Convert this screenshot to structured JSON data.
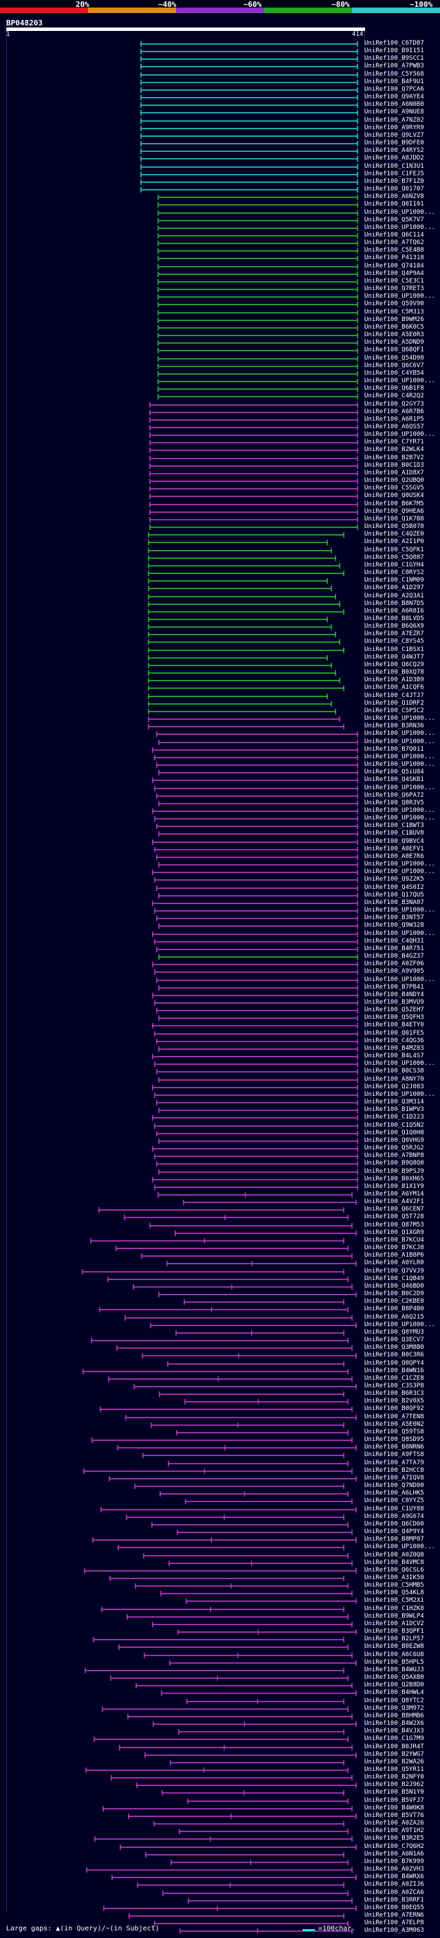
{
  "header": {
    "scale_labels": [
      "20%",
      "~40%",
      "~60%",
      "~80%",
      "~100%"
    ],
    "scale_colors": [
      "#e8151d",
      "#e08a1b",
      "#8f2dd0",
      "#1fa81f",
      "#33c7d4"
    ],
    "query_id": "BP048203",
    "start_pos": "1",
    "end_pos": "414"
  },
  "hits": [
    {
      "id": "UniRef100_C6TD87",
      "color": "#27e3d6"
    },
    {
      "id": "UniRef100_B9I151",
      "color": "#27e3d6"
    },
    {
      "id": "UniRef100_B9SCC1",
      "color": "#27e3d6"
    },
    {
      "id": "UniRef100_A7PWB3",
      "color": "#27e3d6"
    },
    {
      "id": "UniRef100_C5Y568",
      "color": "#27e3d6"
    },
    {
      "id": "UniRef100_B4F9U1",
      "color": "#27e3d6"
    },
    {
      "id": "UniRef100_Q7PCA6",
      "color": "#27e3d6"
    },
    {
      "id": "UniRef100_Q9AYE4",
      "color": "#27e3d6"
    },
    {
      "id": "UniRef100_A6N0B0",
      "color": "#27e3d6"
    },
    {
      "id": "UniRef100_A9NUE8",
      "color": "#27e3d6"
    },
    {
      "id": "UniRef100_A7NZ02",
      "color": "#27e3d6"
    },
    {
      "id": "UniRef100_A9RYR9",
      "color": "#27e3d6"
    },
    {
      "id": "UniRef100_Q9LVZ7",
      "color": "#27e3d6"
    },
    {
      "id": "UniRef100_B9DFE0",
      "color": "#27e3d6"
    },
    {
      "id": "UniRef100_A4RYS2",
      "color": "#27e3d6"
    },
    {
      "id": "UniRef100_A8JDD2",
      "color": "#27e3d6"
    },
    {
      "id": "UniRef100_C1N3U1",
      "color": "#27e3d6"
    },
    {
      "id": "UniRef100_C1FEJ5",
      "color": "#27e3d6"
    },
    {
      "id": "UniRef100_B7F1Z0",
      "color": "#27e3d6"
    },
    {
      "id": "UniRef100_Q01707",
      "color": "#27e3d6"
    },
    {
      "id": "UniRef100_A6NZV8",
      "color": "#2fcf2f"
    },
    {
      "id": "UniRef100_Q0I101",
      "color": "#2fcf2f"
    },
    {
      "id": "UniRef100_UP1000...",
      "color": "#2fcf2f"
    },
    {
      "id": "UniRef100_Q5K7V7",
      "color": "#2fcf2f"
    },
    {
      "id": "UniRef100_UP1000...",
      "color": "#2fcf2f"
    },
    {
      "id": "UniRef100_Q6C114",
      "color": "#2fcf2f"
    },
    {
      "id": "UniRef100_A7TQ62",
      "color": "#2fcf2f"
    },
    {
      "id": "UniRef100_C5E4B8",
      "color": "#2fcf2f"
    },
    {
      "id": "UniRef100_P41318",
      "color": "#2fcf2f"
    },
    {
      "id": "UniRef100_Q74184",
      "color": "#2fcf2f"
    },
    {
      "id": "UniRef100_Q4P9A4",
      "color": "#2fcf2f"
    },
    {
      "id": "UniRef100_C5E3C1",
      "color": "#2fcf2f"
    },
    {
      "id": "UniRef100_Q7RET3",
      "color": "#2fcf2f"
    },
    {
      "id": "UniRef100_UP1000...",
      "color": "#2fcf2f"
    },
    {
      "id": "UniRef100_Q59V90",
      "color": "#2fcf2f"
    },
    {
      "id": "UniRef100_C5M313",
      "color": "#2fcf2f"
    },
    {
      "id": "UniRef100_B9WM26",
      "color": "#2fcf2f"
    },
    {
      "id": "UniRef100_B6K0C5",
      "color": "#2fcf2f"
    },
    {
      "id": "UniRef100_A5E0R3",
      "color": "#2fcf2f"
    },
    {
      "id": "UniRef100_A5DND9",
      "color": "#2fcf2f"
    },
    {
      "id": "UniRef100_Q6BQF1",
      "color": "#2fcf2f"
    },
    {
      "id": "UniRef100_Q54D98",
      "color": "#2fcf2f"
    },
    {
      "id": "UniRef100_Q6C6V7",
      "color": "#2fcf2f"
    },
    {
      "id": "UniRef100_C4YB54",
      "color": "#2fcf2f"
    },
    {
      "id": "UniRef100_UP1000...",
      "color": "#2fcf2f"
    },
    {
      "id": "UniRef100_Q6B1F8",
      "color": "#2fcf2f"
    },
    {
      "id": "UniRef100_C4R2Q2",
      "color": "#2fcf2f"
    },
    {
      "id": "UniRef100_Q2GY73",
      "color": "#d23fd2"
    },
    {
      "id": "UniRef100_A6R7B6",
      "color": "#d23fd2"
    },
    {
      "id": "UniRef100_A6R1P5",
      "color": "#d23fd2"
    },
    {
      "id": "UniRef100_A6QS57",
      "color": "#d23fd2"
    },
    {
      "id": "UniRef100_UP1000...",
      "color": "#d23fd2"
    },
    {
      "id": "UniRef100_C7YR71",
      "color": "#d23fd2"
    },
    {
      "id": "UniRef100_B2WLK4",
      "color": "#d23fd2"
    },
    {
      "id": "UniRef100_B2B7V2",
      "color": "#d23fd2"
    },
    {
      "id": "UniRef100_B0C1D3",
      "color": "#d23fd2"
    },
    {
      "id": "UniRef100_A1D8X7",
      "color": "#d23fd2"
    },
    {
      "id": "UniRef100_Q2UBQ0",
      "color": "#d23fd2"
    },
    {
      "id": "UniRef100_C5SGV5",
      "color": "#d23fd2"
    },
    {
      "id": "UniRef100_Q0USK4",
      "color": "#d23fd2"
    },
    {
      "id": "UniRef100_B6K7M5",
      "color": "#d23fd2"
    },
    {
      "id": "UniRef100_Q9HEA6",
      "color": "#d23fd2"
    },
    {
      "id": "UniRef100_Q1K7B8",
      "color": "#d23fd2"
    },
    {
      "id": "UniRef100_Q5B078",
      "color": "#2fcf2f"
    },
    {
      "id": "UniRef100_C4QZE0",
      "color": "#2fcf2f"
    },
    {
      "id": "UniRef100_A2I1P0",
      "color": "#2fcf2f"
    },
    {
      "id": "UniRef100_C5QFK1",
      "color": "#2fcf2f"
    },
    {
      "id": "UniRef100_C5Q087",
      "color": "#2fcf2f"
    },
    {
      "id": "UniRef100_C1GYH4",
      "color": "#2fcf2f"
    },
    {
      "id": "UniRef100_C0RYS2",
      "color": "#2fcf2f"
    },
    {
      "id": "UniRef100_C1NM09",
      "color": "#2fcf2f"
    },
    {
      "id": "UniRef100_A1D297",
      "color": "#2fcf2f"
    },
    {
      "id": "UniRef100_A2Q3A1",
      "color": "#2fcf2f"
    },
    {
      "id": "UniRef100_B8N7D5",
      "color": "#2fcf2f"
    },
    {
      "id": "UniRef100_A6R8I6",
      "color": "#2fcf2f"
    },
    {
      "id": "UniRef100_B8LVD5",
      "color": "#2fcf2f"
    },
    {
      "id": "UniRef100_B6Q6X9",
      "color": "#2fcf2f"
    },
    {
      "id": "UniRef100_A7EZR7",
      "color": "#2fcf2f"
    },
    {
      "id": "UniRef100_C8YS45",
      "color": "#2fcf2f"
    },
    {
      "id": "UniRef100_C1BSX1",
      "color": "#2fcf2f"
    },
    {
      "id": "UniRef100_Q4WJT7",
      "color": "#2fcf2f"
    },
    {
      "id": "UniRef100_Q6CQ29",
      "color": "#2fcf2f"
    },
    {
      "id": "UniRef100_B0XQ78",
      "color": "#2fcf2f"
    },
    {
      "id": "UniRef100_A1D3B9",
      "color": "#2fcf2f"
    },
    {
      "id": "UniRef100_A1CQF6",
      "color": "#2fcf2f"
    },
    {
      "id": "UniRef100_C4JTJ7",
      "color": "#2fcf2f"
    },
    {
      "id": "UniRef100_Q1DRF2",
      "color": "#2fcf2f"
    },
    {
      "id": "UniRef100_C5P5C2",
      "color": "#2fcf2f"
    },
    {
      "id": "UniRef100_UP1000...",
      "color": "#d23fd2"
    },
    {
      "id": "UniRef100_B3RN36",
      "color": "#d23fd2"
    },
    {
      "id": "UniRef100_UP1000...",
      "color": "#d23fd2"
    },
    {
      "id": "UniRef100_UP1000...",
      "color": "#d23fd2"
    },
    {
      "id": "UniRef100_B7Q011",
      "color": "#d23fd2"
    },
    {
      "id": "UniRef100_UP1000...",
      "color": "#d23fd2"
    },
    {
      "id": "UniRef100_UP1000...",
      "color": "#d23fd2"
    },
    {
      "id": "UniRef100_Q5iU84",
      "color": "#d23fd2"
    },
    {
      "id": "UniRef100_Q4SKB1",
      "color": "#d23fd2"
    },
    {
      "id": "UniRef100_UP1000...",
      "color": "#d23fd2"
    },
    {
      "id": "UniRef100_Q6PA72",
      "color": "#d23fd2"
    },
    {
      "id": "UniRef100_Q8R3V5",
      "color": "#d23fd2"
    },
    {
      "id": "UniRef100_UP1000...",
      "color": "#d23fd2"
    },
    {
      "id": "UniRef100_UP1000...",
      "color": "#d23fd2"
    },
    {
      "id": "UniRef100_C1BWT3",
      "color": "#d23fd2"
    },
    {
      "id": "UniRef100_C1BUV8",
      "color": "#d23fd2"
    },
    {
      "id": "UniRef100_Q9BVC4",
      "color": "#d23fd2"
    },
    {
      "id": "UniRef100_A0EFV1",
      "color": "#d23fd2"
    },
    {
      "id": "UniRef100_A0E7R6",
      "color": "#d23fd2"
    },
    {
      "id": "UniRef100_UP1000...",
      "color": "#d23fd2"
    },
    {
      "id": "UniRef100_UP1000...",
      "color": "#d23fd2"
    },
    {
      "id": "UniRef100_Q9Z2K5",
      "color": "#d23fd2"
    },
    {
      "id": "UniRef100_Q4S0I2",
      "color": "#d23fd2"
    },
    {
      "id": "UniRef100_Q17QU5",
      "color": "#d23fd2"
    },
    {
      "id": "UniRef100_B3NA07",
      "color": "#d23fd2"
    },
    {
      "id": "UniRef100_UP1000...",
      "color": "#d23fd2"
    },
    {
      "id": "UniRef100_B3NT57",
      "color": "#d23fd2"
    },
    {
      "id": "UniRef100_Q9W328",
      "color": "#d23fd2"
    },
    {
      "id": "UniRef100_UP1000...",
      "color": "#d23fd2"
    },
    {
      "id": "UniRef100_C4QH31",
      "color": "#d23fd2"
    },
    {
      "id": "UniRef100_B4R751",
      "color": "#d23fd2"
    },
    {
      "id": "UniRef100_B4GZ37",
      "color": "#2fcf2f"
    },
    {
      "id": "UniRef100_A0ZF06",
      "color": "#d23fd2"
    },
    {
      "id": "UniRef100_A9V905",
      "color": "#d23fd2"
    },
    {
      "id": "UniRef100_UP1000...",
      "color": "#d23fd2"
    },
    {
      "id": "UniRef100_B7PB41",
      "color": "#d23fd2"
    },
    {
      "id": "UniRef100_B4NDY4",
      "color": "#d23fd2"
    },
    {
      "id": "UniRef100_B3MVU9",
      "color": "#d23fd2"
    },
    {
      "id": "UniRef100_Q5ZEH7",
      "color": "#d23fd2"
    },
    {
      "id": "UniRef100_Q5QFH3",
      "color": "#d23fd2"
    },
    {
      "id": "UniRef100_B4ETY0",
      "color": "#d23fd2"
    },
    {
      "id": "UniRef100_Q01FE5",
      "color": "#d23fd2"
    },
    {
      "id": "UniRef100_C4QG36",
      "color": "#d23fd2"
    },
    {
      "id": "UniRef100_B4MZ03",
      "color": "#d23fd2"
    },
    {
      "id": "UniRef100_B4L4S7",
      "color": "#d23fd2"
    },
    {
      "id": "UniRef100_UP1000...",
      "color": "#d23fd2"
    },
    {
      "id": "UniRef100_B0CS38",
      "color": "#d23fd2"
    },
    {
      "id": "UniRef100_A8NY70",
      "color": "#d23fd2"
    },
    {
      "id": "UniRef100_Q2J083",
      "color": "#d23fd2"
    },
    {
      "id": "UniRef100_UP1000...",
      "color": "#d23fd2"
    },
    {
      "id": "UniRef100_Q3M314",
      "color": "#d23fd2"
    },
    {
      "id": "UniRef100_B1WPV3",
      "color": "#d23fd2"
    },
    {
      "id": "UniRef100_C1D223",
      "color": "#d23fd2"
    },
    {
      "id": "UniRef100_C1Q5N2",
      "color": "#d23fd2"
    },
    {
      "id": "UniRef100_Q1Q0H8",
      "color": "#d23fd2"
    },
    {
      "id": "UniRef100_Q0VHG9",
      "color": "#d23fd2"
    },
    {
      "id": "UniRef100_Q5RJG2",
      "color": "#d23fd2"
    },
    {
      "id": "UniRef100_A7BNP8",
      "color": "#d23fd2"
    },
    {
      "id": "UniRef100_B9Q8Q0",
      "color": "#d23fd2"
    },
    {
      "id": "UniRef100_B9PSJ9",
      "color": "#d23fd2"
    },
    {
      "id": "UniRef100_B0XH65",
      "color": "#d23fd2"
    },
    {
      "id": "UniRef100_B1X1Y9",
      "color": "#d23fd2"
    },
    {
      "id": "UniRef100_A6YM14",
      "color": "#d23fd2"
    },
    {
      "id": "UniRef100_A4V2F1",
      "color": "#d23fd2"
    },
    {
      "id": "UniRef100_Q6CEN7",
      "color": "#d23fd2"
    },
    {
      "id": "UniRef100_Q5T728",
      "color": "#d23fd2"
    },
    {
      "id": "UniRef100_Q87M53",
      "color": "#d23fd2"
    },
    {
      "id": "UniRef100_Q1XGR9",
      "color": "#d23fd2"
    },
    {
      "id": "UniRef100_B7KCU4",
      "color": "#d23fd2"
    },
    {
      "id": "UniRef100_B7KCJ8",
      "color": "#d23fd2"
    },
    {
      "id": "UniRef100_A1B8P6",
      "color": "#d23fd2"
    },
    {
      "id": "UniRef100_A0YLR0",
      "color": "#d23fd2"
    },
    {
      "id": "UniRef100_Q7VVJ9",
      "color": "#d23fd2"
    },
    {
      "id": "UniRef100_C1QB49",
      "color": "#d23fd2"
    },
    {
      "id": "UniRef100_Q46BD0",
      "color": "#d23fd2"
    },
    {
      "id": "UniRef100_B0C2D9",
      "color": "#d23fd2"
    },
    {
      "id": "UniRef100_C2KBE0",
      "color": "#d23fd2"
    },
    {
      "id": "UniRef100_B8P4B0",
      "color": "#d23fd2"
    },
    {
      "id": "UniRef100_A6Q215",
      "color": "#d23fd2"
    },
    {
      "id": "UniRef100_UP1000...",
      "color": "#d23fd2"
    },
    {
      "id": "UniRef100_Q8YMU3",
      "color": "#d23fd2"
    },
    {
      "id": "UniRef100_Q3ECV7",
      "color": "#d23fd2"
    },
    {
      "id": "UniRef100_Q3M8B0",
      "color": "#d23fd2"
    },
    {
      "id": "UniRef100_B0C3R6",
      "color": "#d23fd2"
    },
    {
      "id": "UniRef100_Q0QPY4",
      "color": "#d23fd2"
    },
    {
      "id": "UniRef100_B4WN16",
      "color": "#d23fd2"
    },
    {
      "id": "UniRef100_C1CZE8",
      "color": "#d23fd2"
    },
    {
      "id": "UniRef100_C3S3P8",
      "color": "#d23fd2"
    },
    {
      "id": "UniRef100_B6R3C3",
      "color": "#d23fd2"
    },
    {
      "id": "UniRef100_B2V0X5",
      "color": "#d23fd2"
    },
    {
      "id": "UniRef100_B0QF92",
      "color": "#d23fd2"
    },
    {
      "id": "UniRef100_A7TEN8",
      "color": "#d23fd2"
    },
    {
      "id": "UniRef100_A5E0N2",
      "color": "#d23fd2"
    },
    {
      "id": "UniRef100_Q59TS8",
      "color": "#d23fd2"
    },
    {
      "id": "UniRef100_Q8SD95",
      "color": "#d23fd2"
    },
    {
      "id": "UniRef100_B8NRN6",
      "color": "#d23fd2"
    },
    {
      "id": "UniRef100_A9FTS8",
      "color": "#d23fd2"
    },
    {
      "id": "UniRef100_A7TA79",
      "color": "#d23fd2"
    },
    {
      "id": "UniRef100_B2HCC8",
      "color": "#d23fd2"
    },
    {
      "id": "UniRef100_A7IQV8",
      "color": "#d23fd2"
    },
    {
      "id": "UniRef100_Q7ND00",
      "color": "#d23fd2"
    },
    {
      "id": "UniRef100_A6LHK5",
      "color": "#d23fd2"
    },
    {
      "id": "UniRef100_C8YYZ5",
      "color": "#d23fd2"
    },
    {
      "id": "UniRef100_C1UY88",
      "color": "#d23fd2"
    },
    {
      "id": "UniRef100_A9G674",
      "color": "#d23fd2"
    },
    {
      "id": "UniRef100_Q6CD60",
      "color": "#d23fd2"
    },
    {
      "id": "UniRef100_Q4P9Y4",
      "color": "#d23fd2"
    },
    {
      "id": "UniRef100_B8MP07",
      "color": "#d23fd2"
    },
    {
      "id": "UniRef100_UP1000...",
      "color": "#d23fd2"
    },
    {
      "id": "UniRef100_A0Z0Q8",
      "color": "#d23fd2"
    },
    {
      "id": "UniRef100_B4VMC8",
      "color": "#d23fd2"
    },
    {
      "id": "UniRef100_Q6CSL6",
      "color": "#d23fd2"
    },
    {
      "id": "UniRef100_A3IK50",
      "color": "#d23fd2"
    },
    {
      "id": "UniRef100_C5HMB5",
      "color": "#d23fd2"
    },
    {
      "id": "UniRef100_Q54KL8",
      "color": "#d23fd2"
    },
    {
      "id": "UniRef100_C5M2X1",
      "color": "#d23fd2"
    },
    {
      "id": "UniRef100_C1HZK8",
      "color": "#d23fd2"
    },
    {
      "id": "UniRef100_B9WLP4",
      "color": "#d23fd2"
    },
    {
      "id": "UniRef100_A1DCV2",
      "color": "#d23fd2"
    },
    {
      "id": "UniRef100_B3QPF1",
      "color": "#d23fd2"
    },
    {
      "id": "UniRef100_B2LP57",
      "color": "#d23fd2"
    },
    {
      "id": "UniRef100_B0EZW8",
      "color": "#d23fd2"
    },
    {
      "id": "UniRef100_A6C6U8",
      "color": "#d23fd2"
    },
    {
      "id": "UniRef100_B5HPL5",
      "color": "#d23fd2"
    },
    {
      "id": "UniRef100_B4WUJ3",
      "color": "#d23fd2"
    },
    {
      "id": "UniRef100_Q5AXB0",
      "color": "#d23fd2"
    },
    {
      "id": "UniRef100_Q2B8D0",
      "color": "#d23fd2"
    },
    {
      "id": "UniRef100_B4HWL4",
      "color": "#d23fd2"
    },
    {
      "id": "UniRef100_Q8YTC2",
      "color": "#d23fd2"
    },
    {
      "id": "UniRef100_Q3M972",
      "color": "#d23fd2"
    },
    {
      "id": "UniRef100_B8HMB6",
      "color": "#d23fd2"
    },
    {
      "id": "UniRef100_B4W2X6",
      "color": "#d23fd2"
    },
    {
      "id": "UniRef100_B4VJX3",
      "color": "#d23fd2"
    },
    {
      "id": "UniRef100_C1G7M9",
      "color": "#d23fd2"
    },
    {
      "id": "UniRef100_B0JR4T",
      "color": "#d23fd2"
    },
    {
      "id": "UniRef100_B2YWG7",
      "color": "#d23fd2"
    },
    {
      "id": "UniRef100_B2WA26",
      "color": "#d23fd2"
    },
    {
      "id": "UniRef100_Q5YR11",
      "color": "#d23fd2"
    },
    {
      "id": "UniRef100_B2NFY0",
      "color": "#d23fd2"
    },
    {
      "id": "UniRef100_B2J962",
      "color": "#d23fd2"
    },
    {
      "id": "UniRef100_B5N1Y0",
      "color": "#d23fd2"
    },
    {
      "id": "UniRef100_B5VFJ7",
      "color": "#d23fd2"
    },
    {
      "id": "UniRef100_B4W0K8",
      "color": "#d23fd2"
    },
    {
      "id": "UniRef100_B5VT76",
      "color": "#d23fd2"
    },
    {
      "id": "UniRef100_A0ZA26",
      "color": "#d23fd2"
    },
    {
      "id": "UniRef100_A9T1H2",
      "color": "#d23fd2"
    },
    {
      "id": "UniRef100_B3R2E5",
      "color": "#d23fd2"
    },
    {
      "id": "UniRef100_C7Q6H2",
      "color": "#d23fd2"
    },
    {
      "id": "UniRef100_A6N1A6",
      "color": "#d23fd2"
    },
    {
      "id": "UniRef100_B7K999",
      "color": "#d23fd2"
    },
    {
      "id": "UniRef100_A0ZVH3",
      "color": "#d23fd2"
    },
    {
      "id": "UniRef100_B4WRX6",
      "color": "#d23fd2"
    },
    {
      "id": "UniRef100_A0ZIJ6",
      "color": "#d23fd2"
    },
    {
      "id": "UniRef100_A0ZCA6",
      "color": "#d23fd2"
    },
    {
      "id": "UniRef100_B3RRF1",
      "color": "#d23fd2"
    },
    {
      "id": "UniRef100_B0EQ55",
      "color": "#d23fd2"
    },
    {
      "id": "UniRef100_A7ERN6",
      "color": "#d23fd2"
    },
    {
      "id": "UniRef100_A7ELP8",
      "color": "#d23fd2"
    },
    {
      "id": "UniRef100_A3M063",
      "color": "#d23fd2"
    }
  ],
  "footer": {
    "large_gaps": "Large gaps: ▲(in Query)/~(in Subject)",
    "legend": "=100char."
  }
}
